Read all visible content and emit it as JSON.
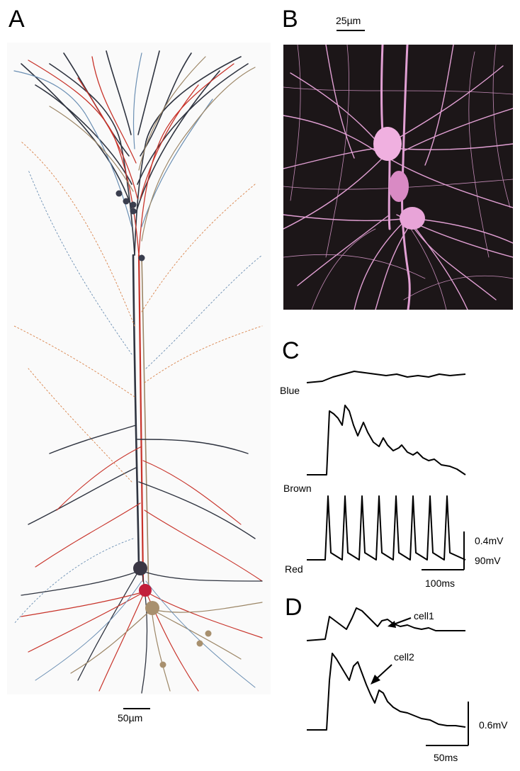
{
  "figure": {
    "panels": {
      "a": {
        "label": "A",
        "scale_bar_label": "50µm"
      },
      "b": {
        "label": "B",
        "scale_bar_label": "25µm"
      },
      "c": {
        "label": "C",
        "trace_labels": {
          "blue": "Blue",
          "brown": "Brown",
          "red": "Red"
        },
        "scale_voltage_small": "0.4mV",
        "scale_voltage_large": "90mV",
        "scale_time": "100ms"
      },
      "d": {
        "label": "D",
        "cell1_label": "cell1",
        "cell2_label": "cell2",
        "scale_voltage": "0.6mV",
        "scale_time": "50ms"
      }
    },
    "colors": {
      "dark_neuron": "#2f3440",
      "red_neuron": "#c8332a",
      "brown_neuron": "#9c8666",
      "blue_neuron": "#6b8fb3",
      "orange_neuron": "#d9834a",
      "photo_background": "#1c1618",
      "photo_dendrite": "#e8a8d8",
      "photo_soma": "#f0b0e0"
    }
  }
}
